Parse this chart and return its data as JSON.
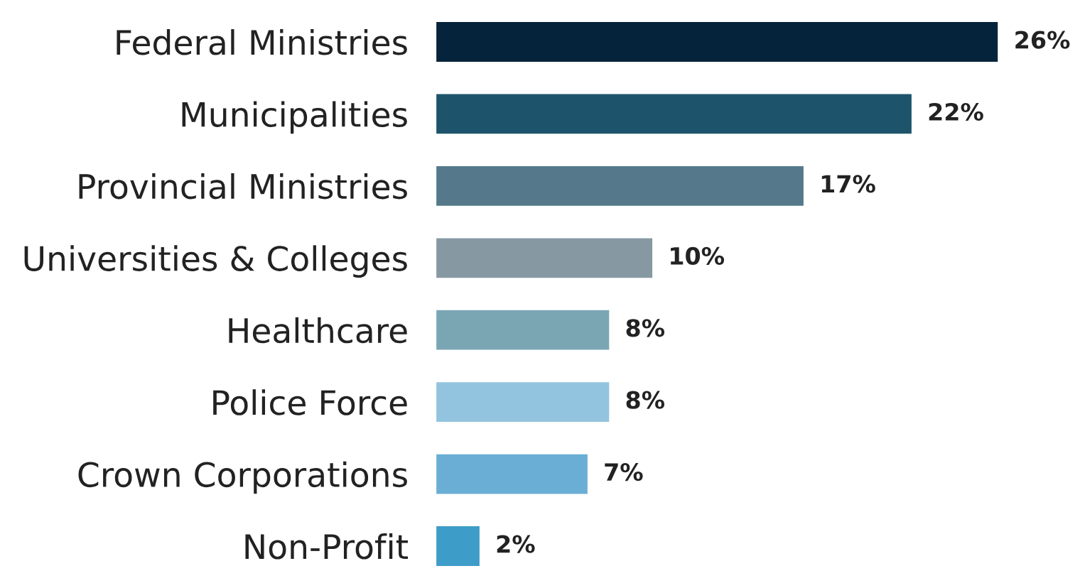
{
  "chart_data": {
    "type": "bar",
    "orientation": "horizontal",
    "categories": [
      "Federal Ministries",
      "Municipalities",
      "Provincial Ministries",
      "Universities & Colleges",
      "Healthcare",
      "Police Force",
      "Crown Corporations",
      "Non-Profit"
    ],
    "values": [
      26,
      22,
      17,
      10,
      8,
      8,
      7,
      2
    ],
    "value_labels": [
      "26%",
      "22%",
      "17%",
      "10%",
      "8%",
      "8%",
      "7%",
      "2%"
    ],
    "colors": [
      "#05233a",
      "#1e546b",
      "#55798a",
      "#8699a3",
      "#7aa6b4",
      "#93c4df",
      "#6aaed6",
      "#3e9cc8"
    ],
    "grid": false,
    "legend": false,
    "tick_labels": "y"
  }
}
